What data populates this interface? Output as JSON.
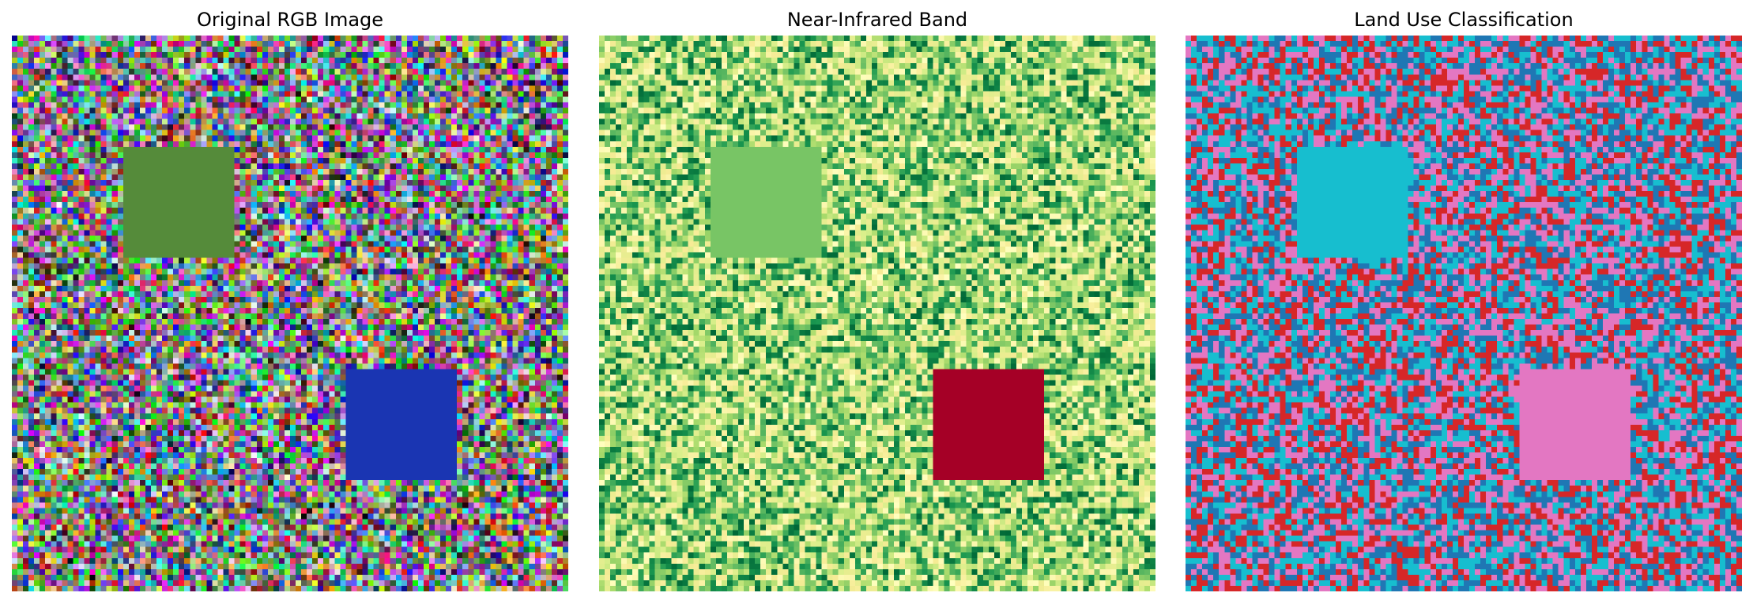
{
  "figure": {
    "panels": [
      {
        "title": "Original RGB Image",
        "kind": "rgb-noise",
        "grid_cells": 100,
        "patches": [
          {
            "label": "vegetation-patch",
            "color": "#558B3A",
            "rows": [
              20,
              40
            ],
            "cols": [
              20,
              40
            ]
          },
          {
            "label": "water-patch",
            "color": "#1A35B2",
            "rows": [
              60,
              80
            ],
            "cols": [
              60,
              80
            ]
          }
        ]
      },
      {
        "title": "Near-Infrared Band",
        "kind": "colormap-noise",
        "colormap": [
          "#FFFFBF",
          "#F6EB95",
          "#D9EF8B",
          "#A6D96A",
          "#66BD63",
          "#1A9850",
          "#006837"
        ],
        "grid_cells": 100,
        "patches": [
          {
            "label": "vegetation-patch",
            "color": "#78C565",
            "rows": [
              20,
              40
            ],
            "cols": [
              20,
              40
            ]
          },
          {
            "label": "water-patch",
            "color": "#A50026",
            "rows": [
              60,
              80
            ],
            "cols": [
              60,
              80
            ]
          }
        ]
      },
      {
        "title": "Land Use Classification",
        "kind": "class-noise",
        "classes": [
          "#D62728",
          "#1F77B4",
          "#17BECF",
          "#E377C2"
        ],
        "grid_cells": 100,
        "patches": [
          {
            "label": "vegetation-patch",
            "color": "#17BECF",
            "rows": [
              20,
              40
            ],
            "cols": [
              20,
              40
            ]
          },
          {
            "label": "water-patch",
            "color": "#E377C2",
            "rows": [
              60,
              80
            ],
            "cols": [
              60,
              80
            ]
          }
        ]
      }
    ]
  }
}
